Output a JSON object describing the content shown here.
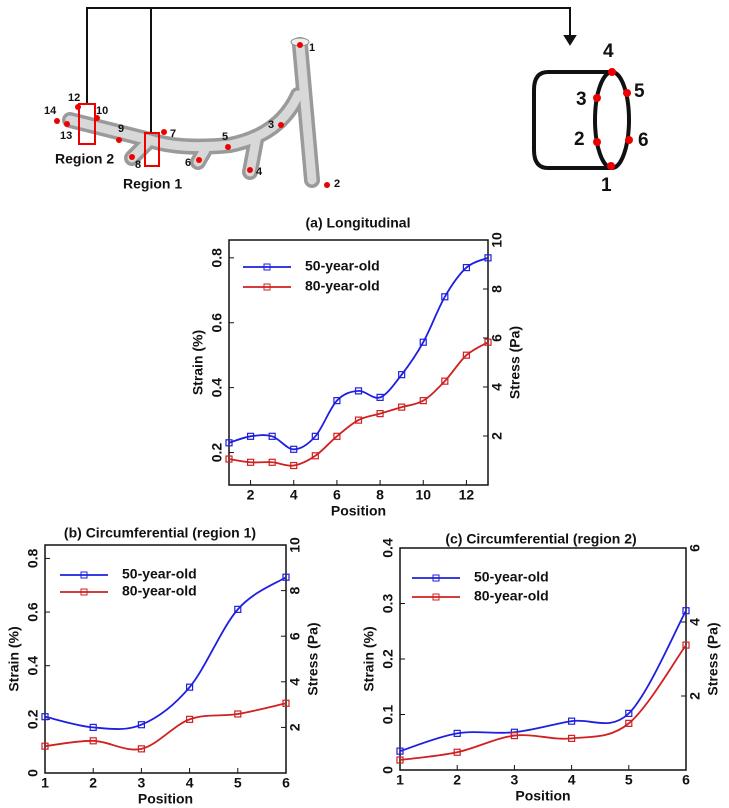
{
  "diagram": {
    "vessel_points": [
      "1",
      "2",
      "3",
      "4",
      "5",
      "6",
      "7",
      "8",
      "9",
      "10",
      "12",
      "13",
      "14"
    ],
    "regions": [
      "Region 1",
      "Region 2"
    ],
    "cross_section_points": [
      "1",
      "2",
      "3",
      "4",
      "5",
      "6"
    ]
  },
  "chart_data": [
    {
      "type": "line",
      "title": "(a) Longitudinal",
      "x_label": "Position",
      "y_label": "Strain (%)",
      "y2_label": "Stress (Pa)",
      "x": [
        1,
        2,
        3,
        4,
        5,
        6,
        7,
        8,
        9,
        10,
        11,
        12,
        13
      ],
      "xlim": [
        1,
        13
      ],
      "xticks": [
        2,
        4,
        6,
        8,
        10,
        12
      ],
      "ylim": [
        0.1,
        0.855
      ],
      "yticks": [
        0.2,
        0.4,
        0.6,
        0.8
      ],
      "y2lim": [
        0,
        10
      ],
      "y2ticks": [
        2,
        4,
        6,
        8,
        10
      ],
      "series": [
        {
          "name": "50-year-old",
          "color": "#1f1fe0",
          "values": [
            0.23,
            0.25,
            0.25,
            0.21,
            0.25,
            0.36,
            0.39,
            0.37,
            0.44,
            0.54,
            0.68,
            0.77,
            0.8
          ]
        },
        {
          "name": "80-year-old",
          "color": "#d02020",
          "values": [
            0.18,
            0.17,
            0.17,
            0.16,
            0.19,
            0.25,
            0.3,
            0.32,
            0.34,
            0.36,
            0.42,
            0.5,
            0.54
          ]
        }
      ]
    },
    {
      "type": "line",
      "title": "(b) Circumferential (region 1)",
      "x_label": "Position",
      "y_label": "Strain (%)",
      "y2_label": "Stress (Pa)",
      "x": [
        1,
        2,
        3,
        4,
        5,
        6
      ],
      "xlim": [
        1,
        6
      ],
      "xticks": [
        1,
        2,
        3,
        4,
        5,
        6
      ],
      "ylim": [
        0,
        0.85
      ],
      "yticks": [
        0,
        0.2,
        0.4,
        0.6,
        0.8
      ],
      "y2lim": [
        0,
        10
      ],
      "y2ticks": [
        2,
        4,
        6,
        8,
        10
      ],
      "series": [
        {
          "name": "50-year-old",
          "color": "#1f1fe0",
          "values": [
            0.21,
            0.17,
            0.18,
            0.32,
            0.61,
            0.73
          ]
        },
        {
          "name": "80-year-old",
          "color": "#d02020",
          "values": [
            0.1,
            0.12,
            0.09,
            0.2,
            0.22,
            0.26
          ]
        }
      ]
    },
    {
      "type": "line",
      "title": "(c) Circumferential (region 2)",
      "x_label": "Position",
      "y_label": "Strain (%)",
      "y2_label": "Stress (Pa)",
      "x": [
        1,
        2,
        3,
        4,
        5,
        6
      ],
      "xlim": [
        1,
        6
      ],
      "xticks": [
        1,
        2,
        3,
        4,
        5,
        6
      ],
      "ylim": [
        0,
        0.4
      ],
      "yticks": [
        0,
        0.1,
        0.2,
        0.3,
        0.4
      ],
      "y2lim": [
        0,
        6
      ],
      "y2ticks": [
        2,
        4,
        6
      ],
      "series": [
        {
          "name": "50-year-old",
          "color": "#1f1fe0",
          "values": [
            0.034,
            0.066,
            0.068,
            0.088,
            0.102,
            0.287
          ]
        },
        {
          "name": "80-year-old",
          "color": "#d02020",
          "values": [
            0.018,
            0.032,
            0.062,
            0.057,
            0.084,
            0.225
          ]
        }
      ]
    }
  ]
}
